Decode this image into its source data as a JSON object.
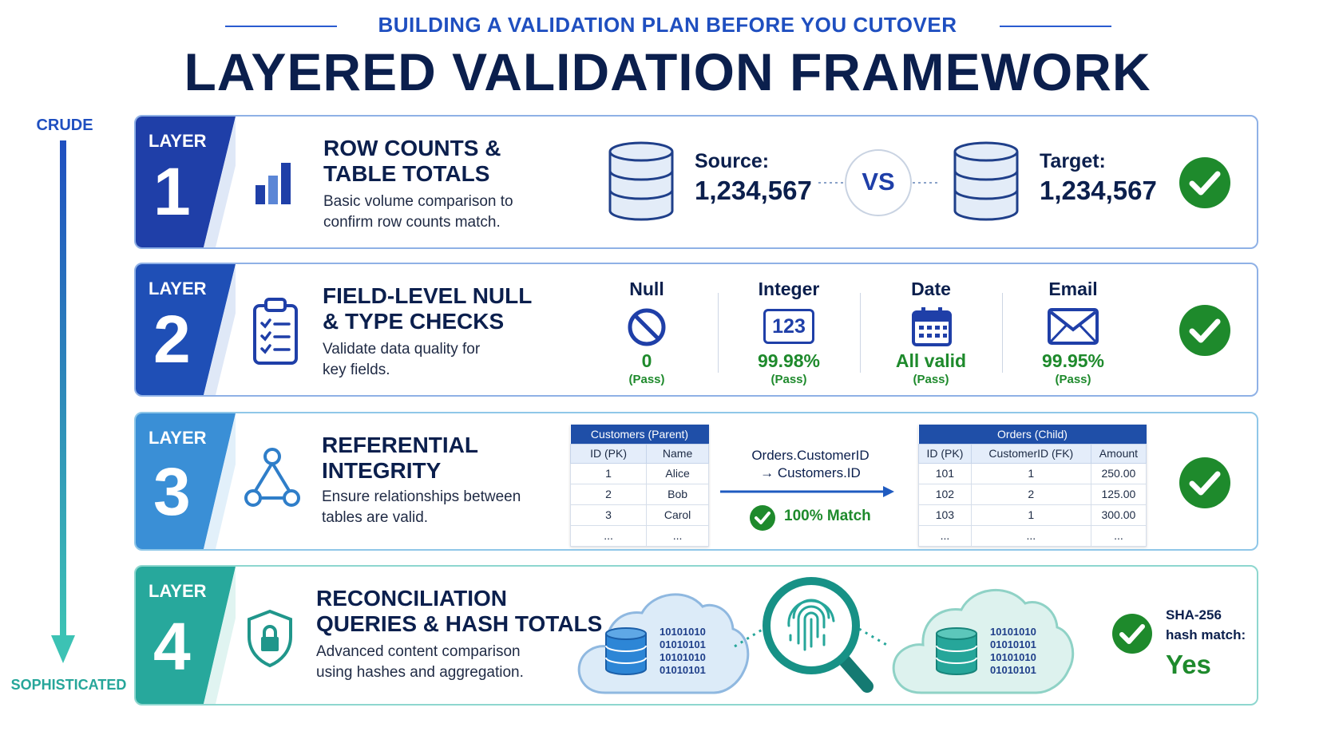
{
  "subtitle": "BUILDING A VALIDATION PLAN BEFORE YOU CUTOVER",
  "title": "LAYERED VALIDATION FRAMEWORK",
  "axis": {
    "top_label": "CRUDE",
    "bottom_label": "SOPHISTICATED"
  },
  "colors": {
    "navy": "#0b1f4d",
    "blue": "#1f4fc0",
    "teal": "#26a69a",
    "green": "#1e8a2c"
  },
  "layers": [
    {
      "badge_word": "LAYER",
      "number": "1",
      "heading_line1": "ROW COUNTS &",
      "heading_line2": "TABLE TOTALS",
      "desc_line1": "Basic volume comparison to",
      "desc_line2": "confirm row counts match.",
      "icon": "bar-chart-icon",
      "source_label": "Source:",
      "source_value": "1,234,567",
      "vs": "VS",
      "target_label": "Target:",
      "target_value": "1,234,567",
      "status_icon": "check-circle-icon"
    },
    {
      "badge_word": "LAYER",
      "number": "2",
      "heading_line1": "FIELD-LEVEL NULL",
      "heading_line2": "& TYPE CHECKS",
      "desc_line1": "Validate data quality for",
      "desc_line2": "key fields.",
      "icon": "clipboard-checklist-icon",
      "metrics": [
        {
          "label": "Null",
          "icon": "no-symbol-icon",
          "value": "0",
          "status": "(Pass)"
        },
        {
          "label": "Integer",
          "icon": "number-123-icon",
          "value": "99.98%",
          "status": "(Pass)"
        },
        {
          "label": "Date",
          "icon": "calendar-icon",
          "value": "All valid",
          "status": "(Pass)"
        },
        {
          "label": "Email",
          "icon": "envelope-icon",
          "value": "99.95%",
          "status": "(Pass)"
        }
      ],
      "status_icon": "check-circle-icon"
    },
    {
      "badge_word": "LAYER",
      "number": "3",
      "heading_line1": "REFERENTIAL",
      "heading_line2": "INTEGRITY",
      "desc_line1": "Ensure relationships between",
      "desc_line2": "tables are valid.",
      "icon": "relationship-nodes-icon",
      "parent_table": {
        "caption": "Customers (Parent)",
        "columns": [
          "ID (PK)",
          "Name"
        ],
        "rows": [
          [
            "1",
            "Alice"
          ],
          [
            "2",
            "Bob"
          ],
          [
            "3",
            "Carol"
          ],
          [
            "...",
            "..."
          ]
        ]
      },
      "relation_line1": "Orders.CustomerID",
      "relation_line2": "→ Customers.ID",
      "match_text": "100% Match",
      "child_table": {
        "caption": "Orders (Child)",
        "columns": [
          "ID (PK)",
          "CustomerID (FK)",
          "Amount"
        ],
        "rows": [
          [
            "101",
            "1",
            "250.00"
          ],
          [
            "102",
            "2",
            "125.00"
          ],
          [
            "103",
            "1",
            "300.00"
          ],
          [
            "...",
            "...",
            "..."
          ]
        ]
      },
      "status_icon": "check-circle-icon"
    },
    {
      "badge_word": "LAYER",
      "number": "4",
      "heading_line1": "RECONCILIATION",
      "heading_line2": "QUERIES & HASH TOTALS",
      "desc_line1": "Advanced content comparison",
      "desc_line2": "using hashes and aggregation.",
      "icon": "shield-lock-icon",
      "binary_left": [
        "10101010",
        "01010101",
        "10101010",
        "01010101"
      ],
      "binary_right": [
        "10101010",
        "01010101",
        "10101010",
        "01010101"
      ],
      "hash_label_line1": "SHA-256",
      "hash_label_line2": "hash match:",
      "hash_value": "Yes",
      "status_icon": "check-circle-icon"
    }
  ]
}
